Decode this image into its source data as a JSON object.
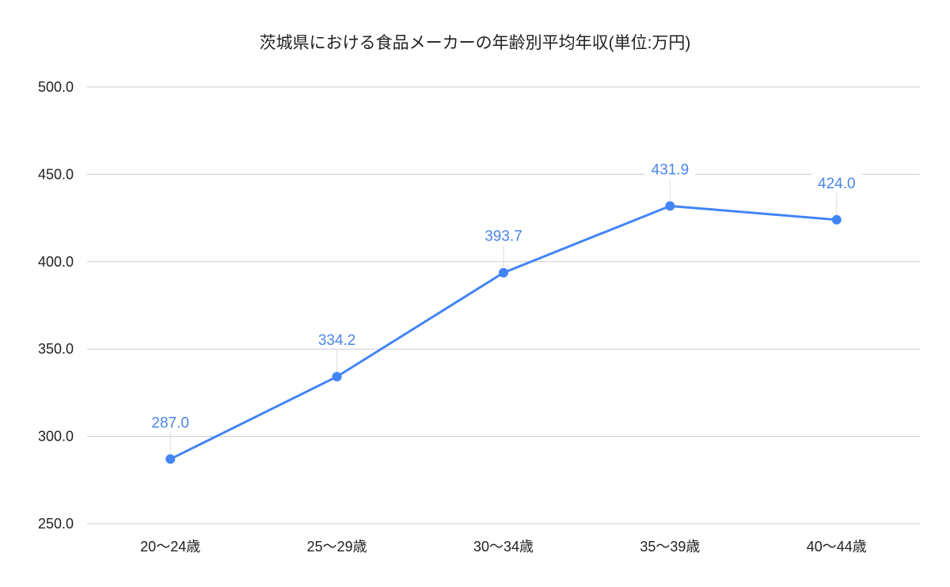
{
  "chart_data": {
    "type": "line",
    "title": "茨城県における食品メーカーの年齢別平均年収(単位:万円)",
    "xlabel": "",
    "ylabel": "",
    "categories": [
      "20～24歳",
      "25～29歳",
      "30～34歳",
      "35～39歳",
      "40～44歳"
    ],
    "series": [
      {
        "name": "平均年収",
        "values": [
          287.0,
          334.2,
          393.7,
          431.9,
          424.0
        ],
        "labels": [
          "287.0",
          "334.2",
          "393.7",
          "431.9",
          "424.0"
        ],
        "color": "#4285f4"
      }
    ],
    "ylim": [
      250,
      500
    ],
    "yticks": [
      "250.0",
      "300.0",
      "350.0",
      "400.0",
      "450.0",
      "500.0"
    ],
    "ytick_values": [
      250,
      300,
      350,
      400,
      450,
      500
    ],
    "grid": true,
    "legend": "none",
    "data_label_color": "#4a86e8",
    "grid_color": "#cccccc"
  }
}
